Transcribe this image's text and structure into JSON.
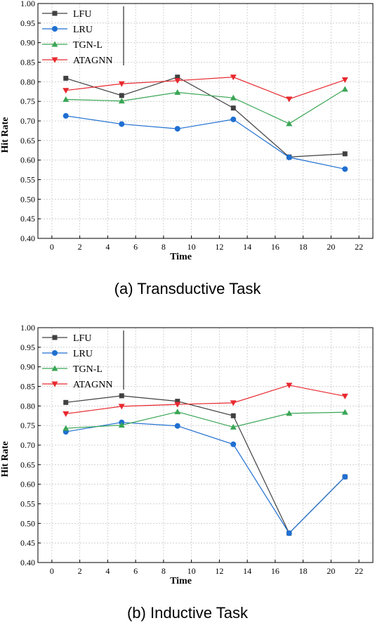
{
  "chart_data": [
    {
      "type": "line",
      "caption": "(a) Transductive Task",
      "xlabel": "Time",
      "ylabel": "Hit Rate",
      "xlim": [
        -1,
        23
      ],
      "ylim": [
        0.4,
        1.0
      ],
      "xticks": [
        0,
        2,
        4,
        6,
        8,
        10,
        12,
        14,
        16,
        18,
        20,
        22
      ],
      "yticks": [
        0.4,
        0.45,
        0.5,
        0.55,
        0.6,
        0.65,
        0.7,
        0.75,
        0.8,
        0.85,
        0.9,
        0.95,
        1.0
      ],
      "grid": true,
      "legend_position": "top-left",
      "x": [
        1,
        5,
        9,
        13,
        17,
        21
      ],
      "series": [
        {
          "name": "LFU",
          "color": "#404040",
          "marker": "square",
          "values": [
            0.809,
            0.765,
            0.812,
            0.733,
            0.608,
            0.616
          ]
        },
        {
          "name": "LRU",
          "color": "#1f6fd1",
          "marker": "circle",
          "values": [
            0.713,
            0.692,
            0.68,
            0.704,
            0.607,
            0.577
          ]
        },
        {
          "name": "TGN-L",
          "color": "#3aa655",
          "marker": "triangle-up",
          "values": [
            0.755,
            0.751,
            0.773,
            0.759,
            0.693,
            0.781
          ]
        },
        {
          "name": "ATAGNN",
          "color": "#e8292f",
          "marker": "triangle-down",
          "values": [
            0.778,
            0.795,
            0.803,
            0.812,
            0.756,
            0.805
          ]
        }
      ]
    },
    {
      "type": "line",
      "caption": "(b) Inductive Task",
      "xlabel": "Time",
      "ylabel": "Hit Rate",
      "xlim": [
        -1,
        23
      ],
      "ylim": [
        0.4,
        1.0
      ],
      "xticks": [
        0,
        2,
        4,
        6,
        8,
        10,
        12,
        14,
        16,
        18,
        20,
        22
      ],
      "yticks": [
        0.4,
        0.45,
        0.5,
        0.55,
        0.6,
        0.65,
        0.7,
        0.75,
        0.8,
        0.85,
        0.9,
        0.95,
        1.0
      ],
      "grid": true,
      "legend_position": "top-left",
      "x": [
        1,
        5,
        9,
        13,
        17,
        21
      ],
      "series": [
        {
          "name": "LFU",
          "color": "#404040",
          "marker": "square",
          "values": [
            0.809,
            0.826,
            0.812,
            0.775,
            0.475,
            0.619
          ]
        },
        {
          "name": "LRU",
          "color": "#1f6fd1",
          "marker": "circle",
          "values": [
            0.734,
            0.758,
            0.749,
            0.702,
            0.475,
            0.619
          ]
        },
        {
          "name": "TGN-L",
          "color": "#3aa655",
          "marker": "triangle-up",
          "values": [
            0.743,
            0.751,
            0.785,
            0.746,
            0.781,
            0.784
          ]
        },
        {
          "name": "ATAGNN",
          "color": "#e8292f",
          "marker": "triangle-down",
          "values": [
            0.78,
            0.799,
            0.804,
            0.808,
            0.853,
            0.825
          ]
        }
      ]
    }
  ]
}
